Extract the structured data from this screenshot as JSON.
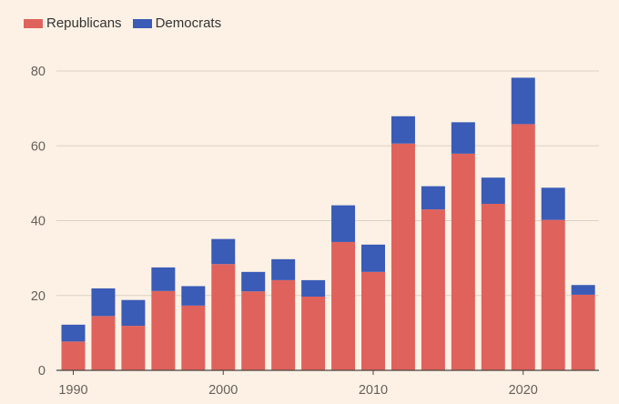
{
  "chart_data": {
    "type": "stacked-bar",
    "title": "",
    "xlabel": "",
    "ylabel": "",
    "ylim": [
      0,
      80
    ],
    "yticks": [
      0,
      20,
      40,
      60,
      80
    ],
    "xticks": [
      1990,
      2000,
      2010,
      2020
    ],
    "x": [
      1990,
      1992,
      1994,
      1996,
      1998,
      2000,
      2002,
      2004,
      2006,
      2008,
      2010,
      2012,
      2014,
      2016,
      2018,
      2020,
      2022,
      2024
    ],
    "series": [
      {
        "name": "Republicans",
        "color": "#e0625c",
        "values": [
          7.7,
          14.5,
          11.9,
          21.2,
          17.3,
          28.4,
          21.1,
          24.1,
          19.7,
          34.3,
          26.3,
          60.6,
          43.0,
          57.9,
          44.5,
          65.8,
          40.2,
          20.2
        ]
      },
      {
        "name": "Democrats",
        "color": "#3a5bb6",
        "values": [
          4.5,
          7.4,
          6.9,
          6.3,
          5.2,
          6.7,
          5.2,
          5.6,
          4.4,
          9.8,
          7.3,
          7.3,
          6.2,
          8.4,
          7.0,
          12.4,
          8.6,
          2.6
        ]
      }
    ],
    "gridlines": true,
    "legend_position": "top-left"
  }
}
